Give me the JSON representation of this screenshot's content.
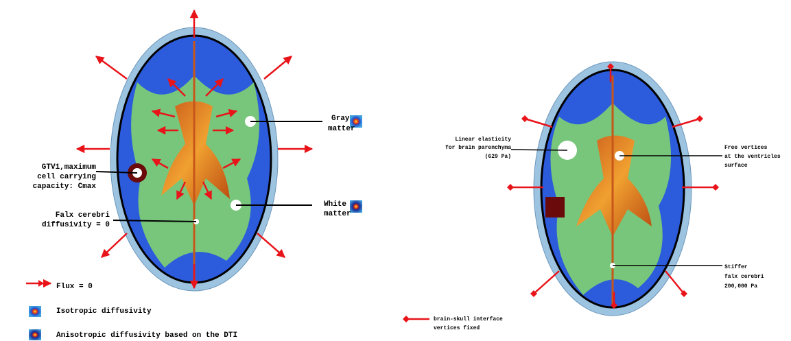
{
  "left_panel": {
    "labels": {
      "gray_matter": [
        "Gray",
        "matter"
      ],
      "gtv": [
        "GTV1,maximum",
        "cell carrying",
        "capacity: Cmax"
      ],
      "white_matter": [
        "White",
        "matter"
      ],
      "falx": [
        "Falx cerebri",
        "diffusivity = 0"
      ]
    },
    "legend": [
      "Flux = 0",
      "Isotropic diffusivity",
      "Anisotropic diffusivity based on the DTI"
    ]
  },
  "right_panel": {
    "labels": {
      "elasticity": [
        "Linear elasticity",
        "for brain parenchyma",
        "(629 Pa)"
      ],
      "free_vertices": [
        "Free vertices",
        "at the ventricles",
        "surface"
      ],
      "falx": [
        "Stiffer",
        "falx cerebri",
        "200,000 Pa"
      ]
    },
    "legend": [
      "brain-skull interface",
      "vertices fixed"
    ]
  }
}
